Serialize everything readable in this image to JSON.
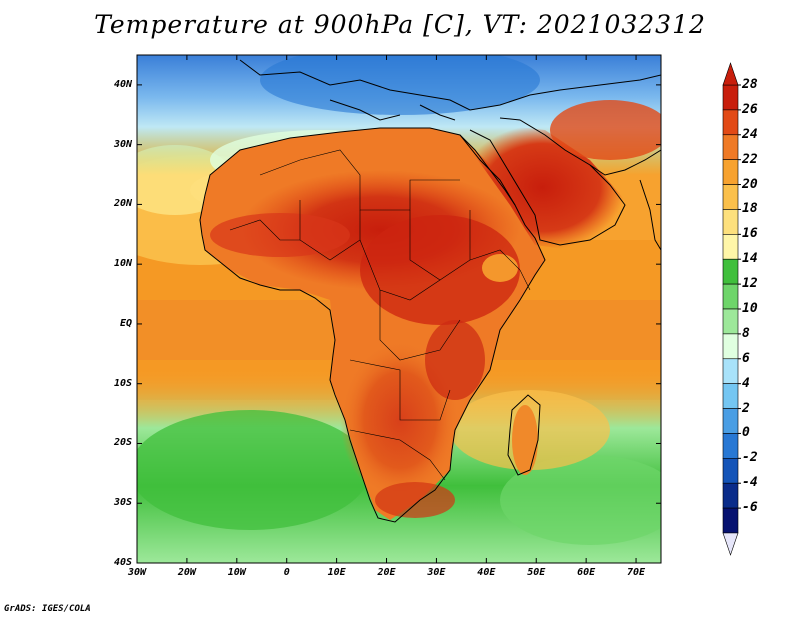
{
  "title": "Temperature at 900hPa [C], VT: 2021032312",
  "footer": "GrADS: IGES/COLA",
  "map": {
    "lat_labels": [
      "40N",
      "30N",
      "20N",
      "10N",
      "EQ",
      "10S",
      "20S",
      "30S",
      "40S"
    ],
    "lon_labels": [
      "30W",
      "20W",
      "10W",
      "0",
      "10E",
      "20E",
      "30E",
      "40E",
      "50E",
      "60E",
      "70E"
    ],
    "lat_range": [
      -40,
      45
    ],
    "lon_range": [
      -30,
      75
    ],
    "field": "temperature at 900hPa",
    "units": "C",
    "regions": [
      {
        "region": "Sahara / Sudan / Chad",
        "range": "24 to 28"
      },
      {
        "region": "Arabian Peninsula",
        "range": "24 to 28"
      },
      {
        "region": "Mediterranean / southern Europe",
        "range": "4 to 10"
      },
      {
        "region": "South Atlantic near 30S",
        "range": "12 to 16"
      },
      {
        "region": "Equatorial Atlantic and Indian Ocean",
        "range": "20 to 24"
      }
    ]
  },
  "colorbar": {
    "labels": [
      "28",
      "26",
      "24",
      "22",
      "20",
      "18",
      "16",
      "14",
      "12",
      "10",
      "8",
      "6",
      "4",
      "2",
      "0",
      "-2",
      "-4",
      "-6"
    ],
    "colors": [
      "#c81e0c",
      "#e24a16",
      "#ef7a26",
      "#f7a22f",
      "#fbc04b",
      "#fde07d",
      "#fff6a8",
      "#40bf3c",
      "#6ed56a",
      "#9de89a",
      "#e0ffe0",
      "#a8e2fa",
      "#74c6f2",
      "#4a9ee4",
      "#2878d4",
      "#1454b8",
      "#0a2c8a",
      "#061270"
    ],
    "top_arrow_color": "#c81e0c",
    "bottom_arrow_color": "#e6e6fa"
  }
}
